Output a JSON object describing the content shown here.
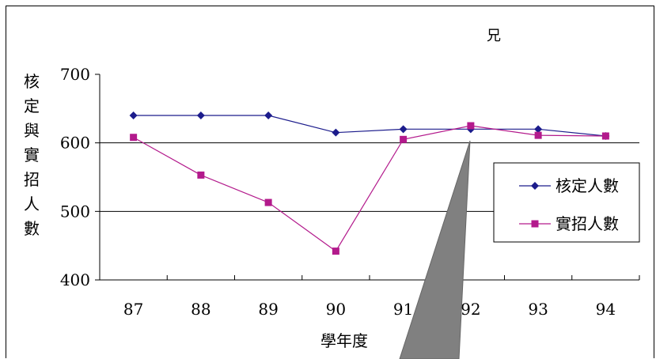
{
  "chart_data": {
    "type": "line",
    "xlabel": "學年度",
    "ylabel": "核定與實招人數",
    "categories": [
      "87",
      "88",
      "89",
      "90",
      "91",
      "92",
      "93",
      "94"
    ],
    "ylim": [
      400,
      700
    ],
    "yticks": [
      "700",
      "600",
      "500",
      "400"
    ],
    "series": [
      {
        "name": "核定人數",
        "values": [
          640,
          640,
          640,
          615,
          620,
          620,
          620,
          610
        ],
        "color": "#1c1c8c",
        "marker": "diamond"
      },
      {
        "name": "實招人數",
        "values": [
          608,
          553,
          513,
          442,
          605,
          625,
          611,
          610
        ],
        "color": "#b31a8c",
        "marker": "square"
      }
    ],
    "annotation": "兄",
    "legend": "right"
  }
}
